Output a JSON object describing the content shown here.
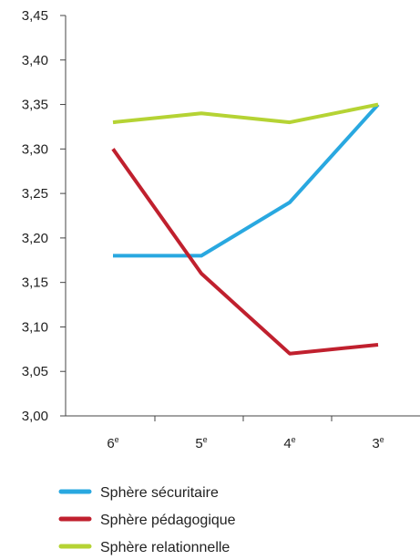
{
  "chart_data": {
    "type": "line",
    "categories": [
      "6",
      "5",
      "4",
      "3"
    ],
    "category_suffix": "e",
    "ylim": [
      3.0,
      3.45
    ],
    "yticks": [
      "3,00",
      "3,05",
      "3,10",
      "3,15",
      "3,20",
      "3,25",
      "3,30",
      "3,35",
      "3,40",
      "3,45"
    ],
    "legend_position": "bottom-left",
    "series": [
      {
        "name": "Sphère sécuritaire",
        "color": "#29a8e0",
        "values": [
          3.18,
          3.18,
          3.24,
          3.35
        ]
      },
      {
        "name": "Sphère pédagogique",
        "color": "#c0202e",
        "values": [
          3.3,
          3.16,
          3.07,
          3.08
        ]
      },
      {
        "name": "Sphère relationnelle",
        "color": "#b5d334",
        "values": [
          3.33,
          3.34,
          3.33,
          3.35
        ]
      }
    ]
  }
}
